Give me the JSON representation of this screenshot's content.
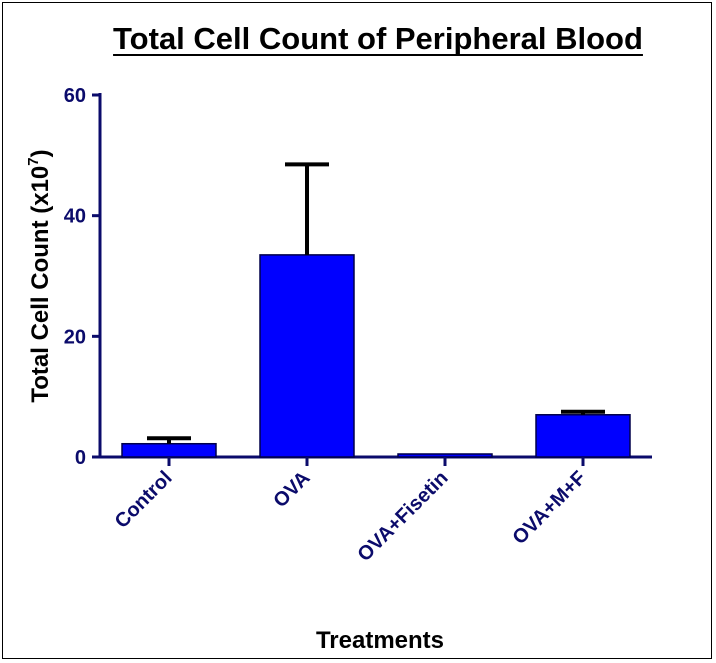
{
  "chart_data": {
    "type": "bar",
    "title": "Total Cell Count of Peripheral Blood",
    "xlabel": "Treatments",
    "ylabel": "Total Cell  Count (x10",
    "ylabel_exp": "7",
    "ylabel_close": ")",
    "categories": [
      "Control",
      "OVA",
      "OVA+Fisetin",
      "OVA+M+F"
    ],
    "values": [
      2.2,
      33.5,
      0.5,
      7.0
    ],
    "errors": [
      0.9,
      15.0,
      0,
      0.5
    ],
    "ylim": [
      0,
      60
    ],
    "yticks": [
      "0",
      "20",
      "40",
      "60"
    ],
    "bar_color": "#0000ff",
    "axis_color": "#0b0b6b",
    "grid": false
  }
}
